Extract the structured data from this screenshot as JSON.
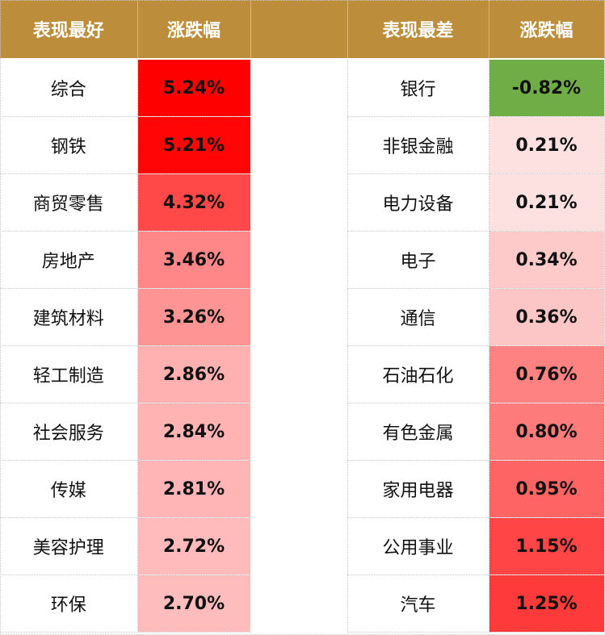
{
  "headers": {
    "best": "表现最好",
    "best_change": "涨跌幅",
    "worst": "表现最差",
    "worst_change": "涨跌幅"
  },
  "rows": [
    {
      "best_name": "综合",
      "best_value": "5.24%",
      "best_color": "#ff0000",
      "worst_name": "银行",
      "worst_value": "-0.82%",
      "worst_color": "#70ad47"
    },
    {
      "best_name": "钢铁",
      "best_value": "5.21%",
      "best_color": "#ff0505",
      "worst_name": "非银金融",
      "worst_value": "0.21%",
      "worst_color": "#fde0e0"
    },
    {
      "best_name": "商贸零售",
      "best_value": "4.32%",
      "best_color": "#ff4848",
      "worst_name": "电力设备",
      "worst_value": "0.21%",
      "worst_color": "#fde0e0"
    },
    {
      "best_name": "房地产",
      "best_value": "3.46%",
      "best_color": "#ff8787",
      "worst_name": "电子",
      "worst_value": "0.34%",
      "worst_color": "#fdc9c9"
    },
    {
      "best_name": "建筑材料",
      "best_value": "3.26%",
      "best_color": "#ff9494",
      "worst_name": "通信",
      "worst_value": "0.36%",
      "worst_color": "#fdc6c6"
    },
    {
      "best_name": "轻工制造",
      "best_value": "2.86%",
      "best_color": "#ffb1b1",
      "worst_name": "石油石化",
      "worst_value": "0.76%",
      "worst_color": "#fe8282"
    },
    {
      "best_name": "社会服务",
      "best_value": "2.84%",
      "best_color": "#ffb3b3",
      "worst_name": "有色金属",
      "worst_value": "0.80%",
      "worst_color": "#fe7b7b"
    },
    {
      "best_name": "传媒",
      "best_value": "2.81%",
      "best_color": "#ffb5b5",
      "worst_name": "家用电器",
      "worst_value": "0.95%",
      "worst_color": "#fe6464"
    },
    {
      "best_name": "美容护理",
      "best_value": "2.72%",
      "best_color": "#ffbbbb",
      "worst_name": "公用事业",
      "worst_value": "1.15%",
      "worst_color": "#ff4545"
    },
    {
      "best_name": "环保",
      "best_value": "2.70%",
      "best_color": "#ffbcbc",
      "worst_name": "汽车",
      "worst_value": "1.25%",
      "worst_color": "#ff3a3a"
    }
  ],
  "colors": {
    "header_bg": "#bc8e3b",
    "header_text": "#ffffff"
  }
}
